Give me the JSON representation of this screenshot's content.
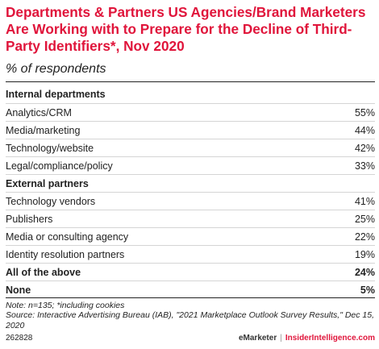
{
  "title": "Departments & Partners US Agencies/Brand Marketers Are Working with to Prepare for the Decline of Third-Party Identifiers*, Nov 2020",
  "subtitle": "% of respondents",
  "colors": {
    "title": "#e0153b",
    "text": "#222222",
    "rule": "#d5d5d5",
    "brand_accent": "#e0153b"
  },
  "chart_data": {
    "type": "table",
    "title": "Departments & Partners US Agencies/Brand Marketers Are Working with to Prepare for the Decline of Third-Party Identifiers*, Nov 2020",
    "subtitle": "% of respondents",
    "unit": "%",
    "rows": [
      {
        "label": "Internal departments",
        "value": "",
        "kind": "header"
      },
      {
        "label": "Analytics/CRM",
        "value": "55%",
        "kind": "item"
      },
      {
        "label": "Media/marketing",
        "value": "44%",
        "kind": "item"
      },
      {
        "label": "Technology/website",
        "value": "42%",
        "kind": "item"
      },
      {
        "label": "Legal/compliance/policy",
        "value": "33%",
        "kind": "item"
      },
      {
        "label": "External partners",
        "value": "",
        "kind": "header"
      },
      {
        "label": "Technology vendors",
        "value": "41%",
        "kind": "item"
      },
      {
        "label": "Publishers",
        "value": "25%",
        "kind": "item"
      },
      {
        "label": "Media or consulting agency",
        "value": "22%",
        "kind": "item"
      },
      {
        "label": "Identity resolution partners",
        "value": "19%",
        "kind": "item"
      },
      {
        "label": "All of the above",
        "value": "24%",
        "kind": "bold"
      },
      {
        "label": "None",
        "value": "5%",
        "kind": "bold"
      }
    ]
  },
  "notes": {
    "note": "Note: n=135; *including cookies",
    "source": "Source: Interactive Advertising Bureau (IAB), \"2021 Marketplace Outlook Survey Results,\" Dec 15, 2020"
  },
  "footer": {
    "chart_id": "262828",
    "brand_left": "eMarketer",
    "separator": "|",
    "brand_right": "InsiderIntelligence.com"
  }
}
